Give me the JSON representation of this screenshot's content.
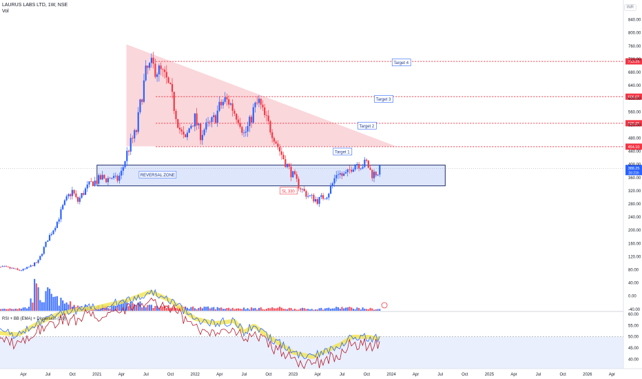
{
  "header": {
    "symbol_line": "LAURUS LABS LTD, 1W, NSE",
    "volume_label": "Vol",
    "currency": "INR"
  },
  "rsi_title": "RSI + BB (EMA) + Dispersion (2.0)",
  "colors": {
    "up": "#2962ff",
    "down": "#f23645",
    "triangle": "#f8c9cf",
    "zone_fill": "#d6e0fb",
    "zone_border": "#1c2a6b",
    "target_line": "#f23645",
    "rsi_band": "#dfe8fb",
    "rsi_yellow": "#f2e44c",
    "price_tag": "#f23645"
  },
  "chart_data": {
    "type": "candlestick",
    "symbol": "LAURUS LABS LTD",
    "interval": "1W",
    "exchange": "NSE",
    "y_axis_price": [
      "840.00",
      "800.00",
      "760.00",
      "720.00",
      "680.00",
      "640.00",
      "600.00",
      "560.00",
      "520.00",
      "480.00",
      "440.00",
      "400.00",
      "360.00",
      "320.00",
      "280.00",
      "240.00",
      "200.00",
      "160.00",
      "120.00",
      "80.00",
      "40.00",
      "0.00",
      "-40.00"
    ],
    "y_axis_rsi": [
      "60.00",
      "55.00",
      "50.00",
      "45.00",
      "40.00"
    ],
    "x_axis": [
      {
        "label": "Apr",
        "date": 2020.25
      },
      {
        "label": "Jul",
        "date": 2020.5
      },
      {
        "label": "Oct",
        "date": 2020.75
      },
      {
        "label": "2021",
        "date": 2021.0
      },
      {
        "label": "Apr",
        "date": 2021.25
      },
      {
        "label": "Jul",
        "date": 2021.5
      },
      {
        "label": "Oct",
        "date": 2021.75
      },
      {
        "label": "2022",
        "date": 2022.0
      },
      {
        "label": "Apr",
        "date": 2022.25
      },
      {
        "label": "Jul",
        "date": 2022.5
      },
      {
        "label": "Oct",
        "date": 2022.75
      },
      {
        "label": "2023",
        "date": 2023.0
      },
      {
        "label": "Apr",
        "date": 2023.25
      },
      {
        "label": "Jul",
        "date": 2023.5
      },
      {
        "label": "Oct",
        "date": 2023.75
      },
      {
        "label": "2024",
        "date": 2024.0
      },
      {
        "label": "Apr",
        "date": 2024.25
      },
      {
        "label": "Jul",
        "date": 2024.5
      },
      {
        "label": "Oct",
        "date": 2024.75
      },
      {
        "label": "2025",
        "date": 2025.0
      },
      {
        "label": "Apr",
        "date": 2025.25
      },
      {
        "label": "Jul",
        "date": 2025.5
      },
      {
        "label": "Oct",
        "date": 2025.75
      },
      {
        "label": "2026",
        "date": 2026.0
      },
      {
        "label": "Apr",
        "date": 2026.25
      }
    ],
    "price_path": [
      [
        2019.92,
        85
      ],
      [
        2020.05,
        88
      ],
      [
        2020.15,
        83
      ],
      [
        2020.2,
        78
      ],
      [
        2020.25,
        80
      ],
      [
        2020.32,
        90
      ],
      [
        2020.4,
        105
      ],
      [
        2020.45,
        140
      ],
      [
        2020.5,
        175
      ],
      [
        2020.55,
        200
      ],
      [
        2020.6,
        230
      ],
      [
        2020.65,
        270
      ],
      [
        2020.7,
        300
      ],
      [
        2020.75,
        320
      ],
      [
        2020.8,
        285
      ],
      [
        2020.85,
        310
      ],
      [
        2020.9,
        330
      ],
      [
        2020.95,
        345
      ],
      [
        2021.0,
        350
      ],
      [
        2021.05,
        360
      ],
      [
        2021.1,
        355
      ],
      [
        2021.15,
        362
      ],
      [
        2021.2,
        350
      ],
      [
        2021.25,
        375
      ],
      [
        2021.3,
        430
      ],
      [
        2021.35,
        470
      ],
      [
        2021.4,
        500
      ],
      [
        2021.45,
        600
      ],
      [
        2021.5,
        680
      ],
      [
        2021.55,
        700
      ],
      [
        2021.6,
        690
      ],
      [
        2021.65,
        680
      ],
      [
        2021.7,
        660
      ],
      [
        2021.75,
        620
      ],
      [
        2021.8,
        560
      ],
      [
        2021.85,
        500
      ],
      [
        2021.9,
        470
      ],
      [
        2021.95,
        520
      ],
      [
        2022.0,
        540
      ],
      [
        2022.05,
        490
      ],
      [
        2022.1,
        510
      ],
      [
        2022.15,
        520
      ],
      [
        2022.2,
        540
      ],
      [
        2022.25,
        575
      ],
      [
        2022.3,
        595
      ],
      [
        2022.35,
        590
      ],
      [
        2022.4,
        560
      ],
      [
        2022.45,
        540
      ],
      [
        2022.5,
        490
      ],
      [
        2022.55,
        520
      ],
      [
        2022.6,
        570
      ],
      [
        2022.65,
        590
      ],
      [
        2022.7,
        550
      ],
      [
        2022.75,
        520
      ],
      [
        2022.8,
        490
      ],
      [
        2022.85,
        450
      ],
      [
        2022.9,
        420
      ],
      [
        2022.95,
        390
      ],
      [
        2023.0,
        365
      ],
      [
        2023.05,
        340
      ],
      [
        2023.1,
        320
      ],
      [
        2023.15,
        305
      ],
      [
        2023.2,
        298
      ],
      [
        2023.25,
        290
      ],
      [
        2023.3,
        300
      ],
      [
        2023.35,
        310
      ],
      [
        2023.4,
        340
      ],
      [
        2023.45,
        380
      ],
      [
        2023.5,
        365
      ],
      [
        2023.55,
        370
      ],
      [
        2023.6,
        395
      ],
      [
        2023.65,
        405
      ],
      [
        2023.7,
        398
      ],
      [
        2023.75,
        405
      ],
      [
        2023.8,
        370
      ],
      [
        2023.85,
        375
      ],
      [
        2023.9,
        388
      ]
    ],
    "volume_path": [
      [
        2019.92,
        5
      ],
      [
        2020.3,
        12
      ],
      [
        2020.37,
        80
      ],
      [
        2020.45,
        40
      ],
      [
        2020.5,
        65
      ],
      [
        2020.6,
        38
      ],
      [
        2020.75,
        22
      ],
      [
        2020.9,
        15
      ],
      [
        2021.2,
        18
      ],
      [
        2021.3,
        30
      ],
      [
        2021.45,
        25
      ],
      [
        2021.55,
        18
      ],
      [
        2021.75,
        15
      ],
      [
        2022.0,
        12
      ],
      [
        2022.3,
        10
      ],
      [
        2022.7,
        9
      ],
      [
        2022.85,
        11
      ],
      [
        2023.0,
        8
      ],
      [
        2023.2,
        7
      ],
      [
        2023.4,
        10
      ],
      [
        2023.5,
        12
      ],
      [
        2023.7,
        9
      ],
      [
        2023.9,
        6
      ]
    ],
    "rsi_path": [
      [
        2019.92,
        52
      ],
      [
        2020.2,
        51
      ],
      [
        2020.4,
        56
      ],
      [
        2020.6,
        60
      ],
      [
        2020.8,
        62
      ],
      [
        2021.0,
        63
      ],
      [
        2021.3,
        66
      ],
      [
        2021.55,
        70
      ],
      [
        2021.75,
        66
      ],
      [
        2022.0,
        58
      ],
      [
        2022.2,
        56
      ],
      [
        2022.4,
        57
      ],
      [
        2022.5,
        52
      ],
      [
        2022.6,
        55
      ],
      [
        2022.75,
        50
      ],
      [
        2022.9,
        46
      ],
      [
        2023.0,
        43
      ],
      [
        2023.2,
        41
      ],
      [
        2023.35,
        44
      ],
      [
        2023.5,
        47
      ],
      [
        2023.6,
        50
      ],
      [
        2023.75,
        50
      ],
      [
        2023.9,
        49
      ]
    ],
    "triangle": {
      "apex": [
        2021.3,
        765
      ],
      "base_left": [
        2021.3,
        455
      ],
      "base_right": [
        2024.05,
        455
      ]
    },
    "reversal_zone": {
      "label": "REVERSAL ZONE",
      "x0": 2021.0,
      "x1": 2024.55,
      "y_low": 335,
      "y_high": 398
    },
    "targets": [
      {
        "label": "Target 1",
        "price": 454.1,
        "price_label": "454.10"
      },
      {
        "label": "Target 2",
        "price": 525.25,
        "price_label": "525.25"
      },
      {
        "label": "Target 3",
        "price": 606.05,
        "price_label": "606.05"
      },
      {
        "label": "Target 4",
        "price": 713.25,
        "price_label": "713.25"
      }
    ],
    "stop_loss": {
      "label": "SL 330",
      "price": 330
    },
    "last_price": {
      "value": "388.25",
      "countdown": "2d 21h"
    }
  }
}
